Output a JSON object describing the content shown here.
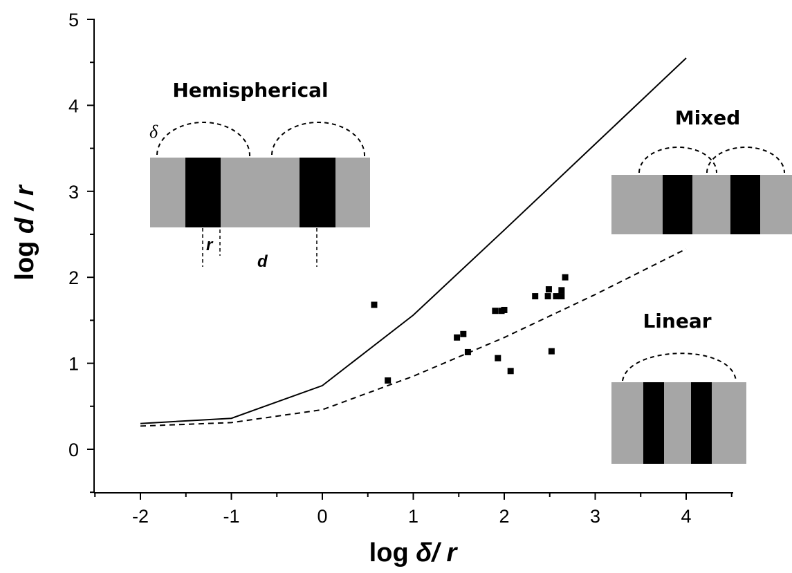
{
  "chart_data": {
    "type": "line",
    "xlabel_prefix": "log ",
    "xlabel_var": "δ",
    "xlabel_suffix": "/ r",
    "ylabel_prefix": "log ",
    "ylabel_var": "d",
    "ylabel_suffix": " / r",
    "xlim": [
      -2.5,
      4.5
    ],
    "ylim": [
      -0.5,
      5
    ],
    "x_ticks": [
      "-2",
      "-1",
      "0",
      "1",
      "2",
      "3",
      "4"
    ],
    "y_ticks": [
      "0",
      "1",
      "2",
      "3",
      "4",
      "5"
    ],
    "grid": false,
    "series": [
      {
        "style": "solid",
        "x": [
          -2,
          -1,
          0,
          1,
          2,
          3,
          4
        ],
        "y": [
          0.3,
          0.36,
          0.74,
          1.56,
          2.55,
          3.55,
          4.55
        ]
      },
      {
        "style": "dashed",
        "x": [
          -2,
          -1,
          0,
          1,
          2,
          3,
          4
        ],
        "y": [
          0.27,
          0.31,
          0.46,
          0.85,
          1.3,
          1.8,
          2.33
        ]
      },
      {
        "style": "markers",
        "x": [
          0.57,
          0.72,
          1.48,
          1.55,
          1.6,
          1.9,
          1.93,
          1.97,
          2.0,
          2.07,
          2.34,
          2.48,
          2.49,
          2.52,
          2.57,
          2.63,
          2.63,
          2.67
        ],
        "y": [
          1.68,
          0.8,
          1.3,
          1.34,
          1.13,
          1.61,
          1.06,
          1.61,
          1.62,
          0.91,
          1.78,
          1.78,
          1.86,
          1.14,
          1.78,
          1.78,
          1.85,
          2.0
        ]
      }
    ],
    "insets": {
      "hemispherical": {
        "title": "Hemispherical",
        "delta_label": "δ",
        "r_label": "r",
        "d_label": "d"
      },
      "mixed": {
        "title": "Mixed"
      },
      "linear": {
        "title": "Linear"
      }
    },
    "colors": {
      "background": "#ffffff",
      "ink": "#000000",
      "substrate": "#a6a6a6",
      "electrode": "#000000"
    }
  }
}
